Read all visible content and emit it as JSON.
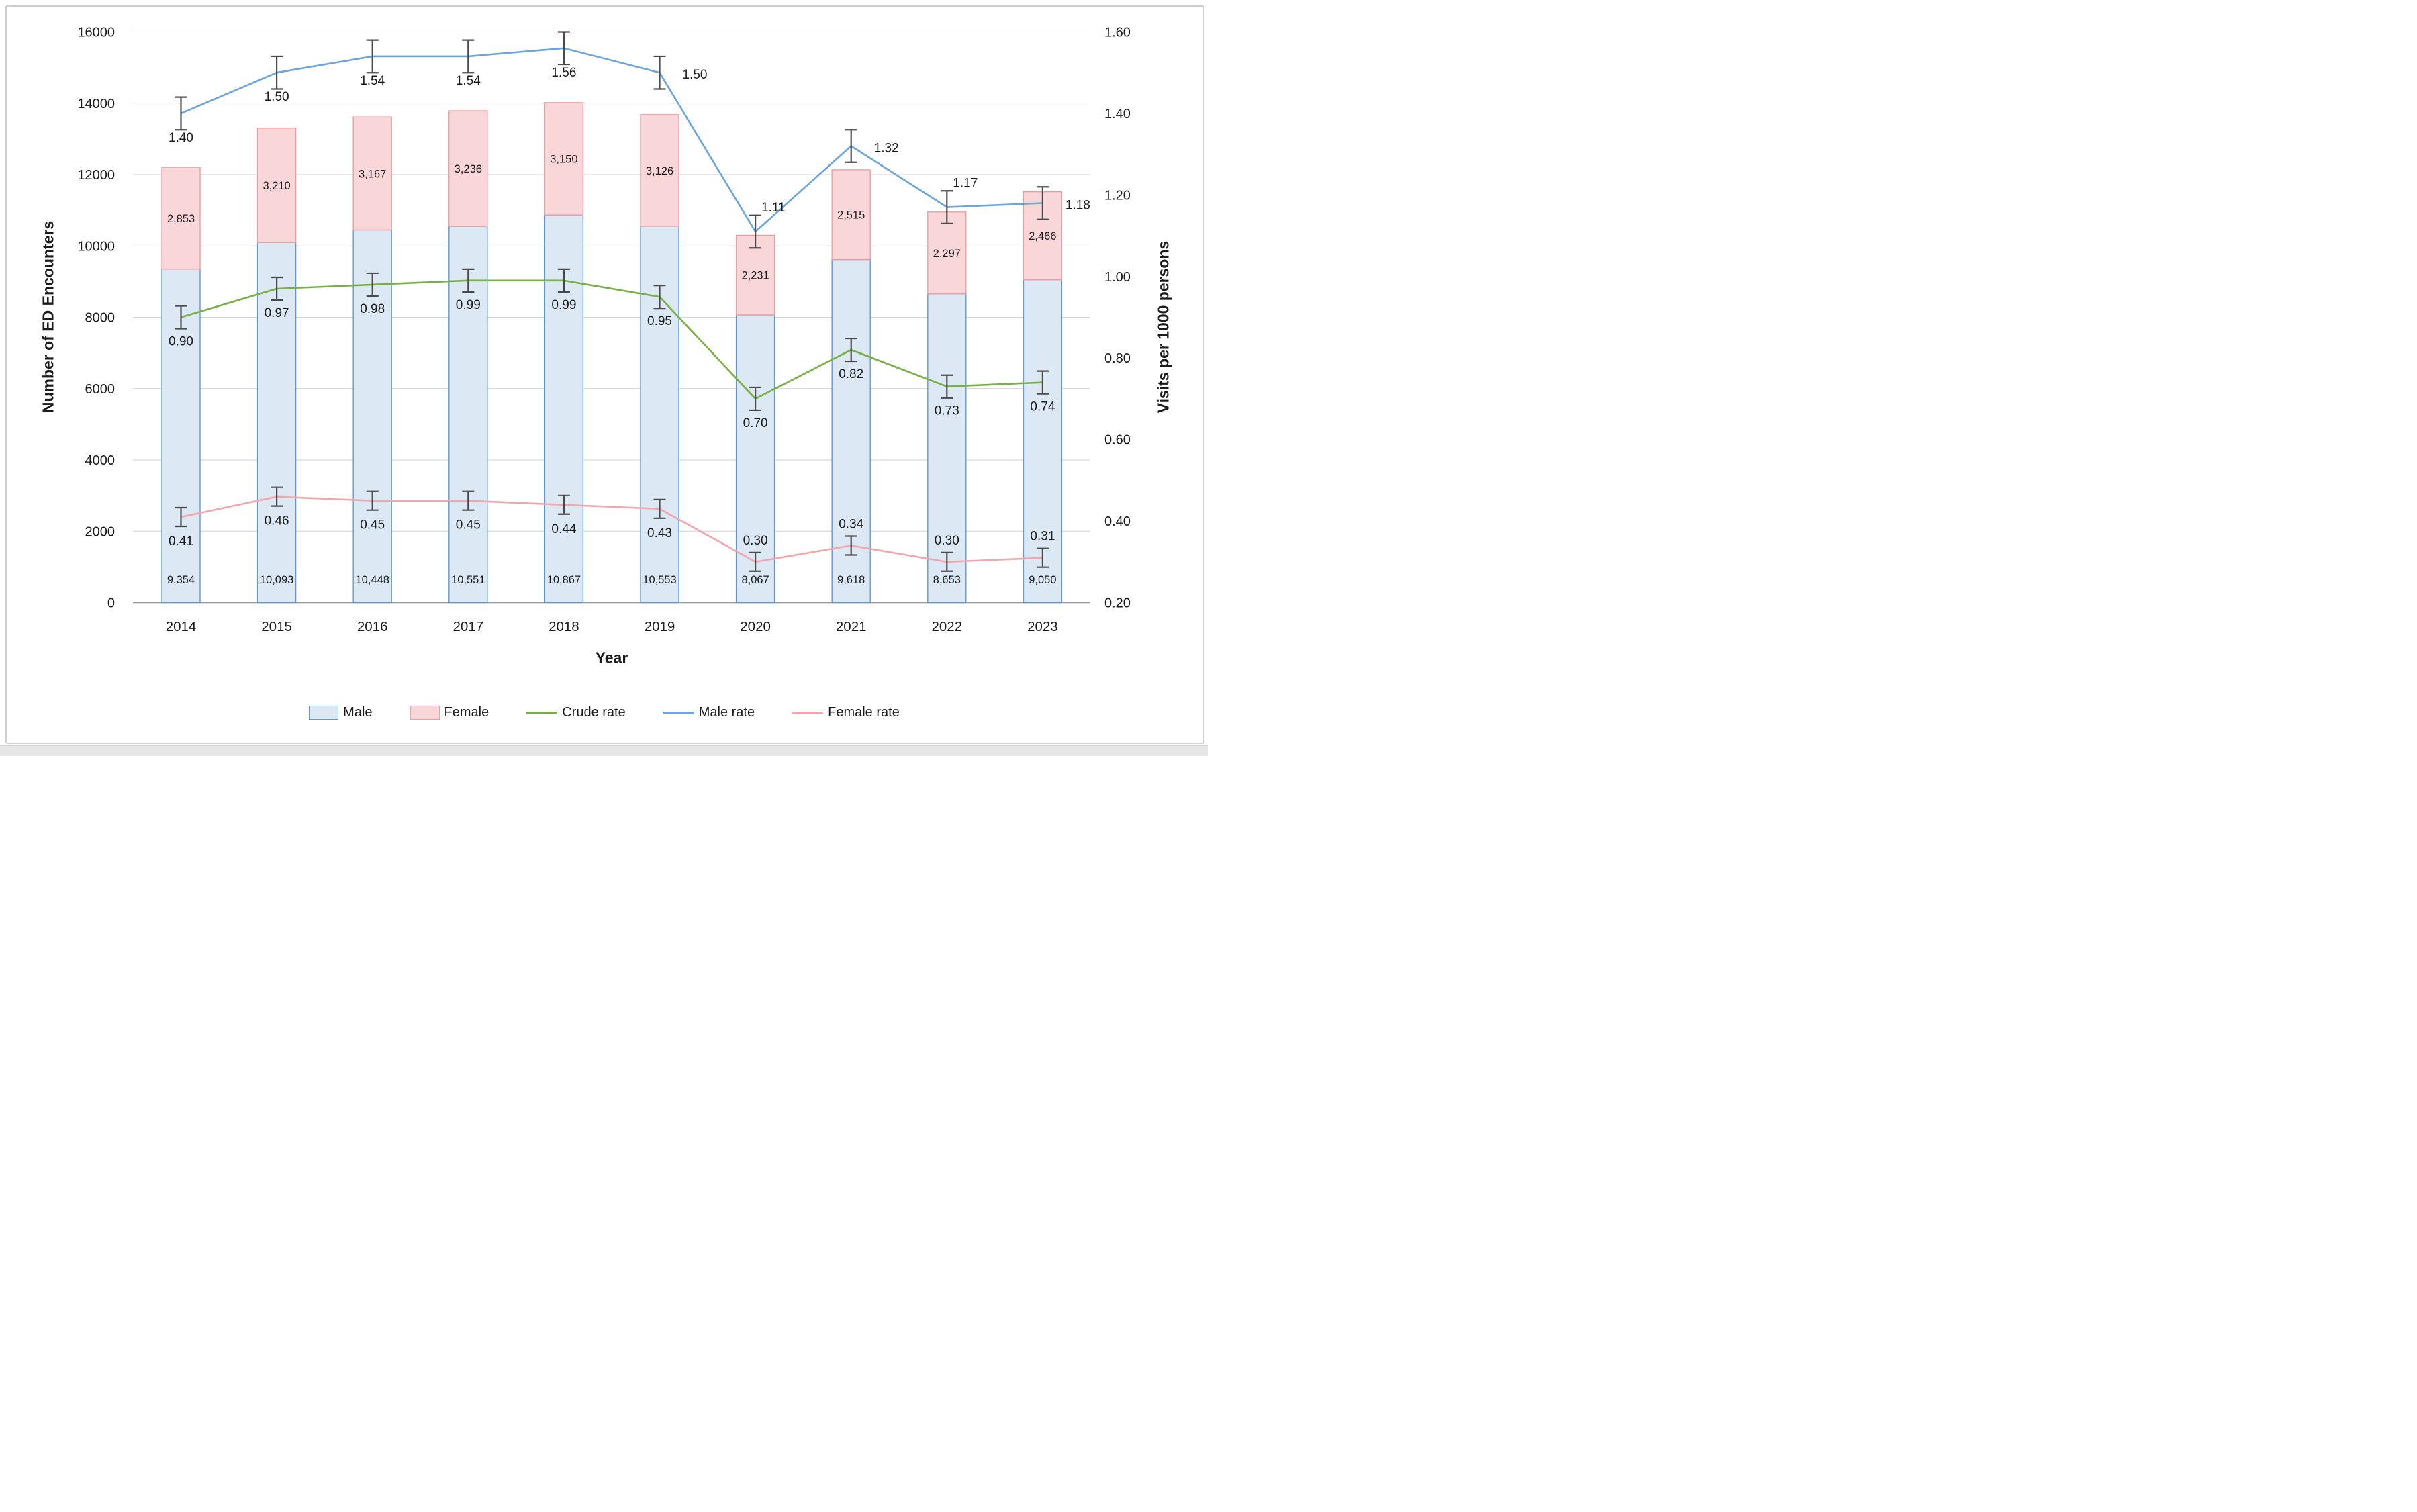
{
  "chart_data": {
    "type": "combo_stacked_bar_lines",
    "title": "",
    "x_title": "Year",
    "categories": [
      "2014",
      "2015",
      "2016",
      "2017",
      "2018",
      "2019",
      "2020",
      "2021",
      "2022",
      "2023"
    ],
    "y_left": {
      "title": "Number of ED Encounters",
      "min": 0,
      "max": 16000,
      "step": 2000
    },
    "y_right": {
      "title": "Visits per 1000 persons",
      "min": 0.2,
      "max": 1.6,
      "step": 0.2
    },
    "grid": "horizontal",
    "legend_position": "bottom",
    "bar_series": [
      {
        "name": "Male",
        "values": [
          9354,
          10093,
          10448,
          10551,
          10867,
          10553,
          8067,
          9618,
          8653,
          9050
        ],
        "fill": "#dce8f4",
        "border": "#5b9bd5"
      },
      {
        "name": "Female",
        "values": [
          2853,
          3210,
          3167,
          3236,
          3150,
          3126,
          2231,
          2515,
          2297,
          2466
        ],
        "fill": "#f9d7d9",
        "border": "#ee9ca1"
      }
    ],
    "line_series": [
      {
        "name": "Crude rate",
        "axis": "right",
        "color": "#76b041",
        "values": [
          0.9,
          0.97,
          0.98,
          0.99,
          0.99,
          0.95,
          0.7,
          0.82,
          0.73,
          0.74
        ],
        "err": 0.028,
        "label_pos": [
          "below",
          "below",
          "below",
          "below",
          "below",
          "below",
          "below",
          "below",
          "below",
          "below"
        ]
      },
      {
        "name": "Male rate",
        "axis": "right",
        "color": "#6ba5e0",
        "values": [
          1.4,
          1.5,
          1.54,
          1.54,
          1.56,
          1.5,
          1.11,
          1.32,
          1.17,
          1.18
        ],
        "err": 0.04,
        "label_pos": [
          "below",
          "below",
          "below",
          "below",
          "below",
          "right",
          "above-right",
          "right",
          "above-right",
          "right"
        ]
      },
      {
        "name": "Female rate",
        "axis": "right",
        "color": "#f3a6aa",
        "values": [
          0.41,
          0.46,
          0.45,
          0.45,
          0.44,
          0.43,
          0.3,
          0.34,
          0.3,
          0.31
        ],
        "err": 0.023,
        "label_pos": [
          "below",
          "below",
          "below",
          "below",
          "below",
          "below",
          "above",
          "above",
          "above",
          "above"
        ]
      }
    ],
    "colors": {
      "gridline": "#d1d1d1",
      "axis_line": "#9e9e9e",
      "error_bar": "#4a4a4a",
      "label_text": "#1b1b1b"
    }
  }
}
